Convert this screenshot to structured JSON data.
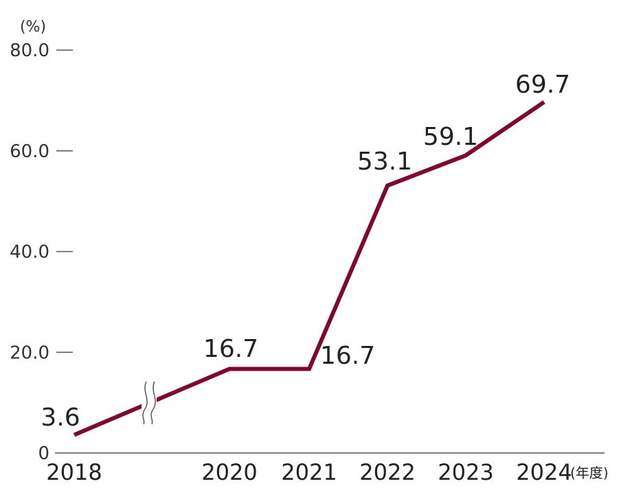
{
  "chart_data": {
    "type": "line",
    "x": [
      "2018",
      "2020",
      "2021",
      "2022",
      "2023",
      "2024"
    ],
    "values": [
      3.6,
      16.7,
      16.7,
      53.1,
      59.1,
      69.7
    ],
    "value_labels": [
      "3.6",
      "16.7",
      "16.7",
      "53.1",
      "59.1",
      "69.7"
    ],
    "y_ticks": [
      0,
      20,
      40,
      60,
      80
    ],
    "y_tick_labels": [
      "0",
      "20.0",
      "40.0",
      "60.0",
      "80.0"
    ],
    "ylim": [
      0,
      80
    ],
    "ylabel": "(%)",
    "xlabel": "(年度)",
    "axis_break_between": [
      "2018",
      "2020"
    ],
    "grid": false,
    "legend": "none",
    "line_color": "#7d0a2c"
  }
}
